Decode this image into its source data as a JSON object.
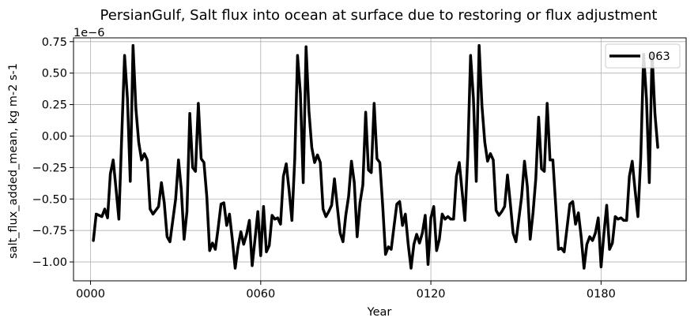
{
  "chart_data": {
    "type": "line",
    "title": "PersianGulf, Salt flux into ocean at surface due to restoring or flux adjustment",
    "xlabel": "Year",
    "ylabel": "salt_flux_added_mean, kg m-2 s-1",
    "y_offset_text": "1e−6",
    "xlim": [
      -6,
      210
    ],
    "ylim": [
      -1.15,
      0.78
    ],
    "x_ticks": [
      0,
      60,
      120,
      180
    ],
    "x_tick_labels": [
      "0000",
      "0060",
      "0120",
      "0180"
    ],
    "y_ticks": [
      -1.0,
      -0.75,
      -0.5,
      -0.25,
      0.0,
      0.25,
      0.5,
      0.75
    ],
    "y_tick_labels": [
      "−1.00",
      "−0.75",
      "−0.50",
      "−0.25",
      "0.00",
      "0.25",
      "0.50",
      "0.75"
    ],
    "grid": true,
    "legend_position": "top-right",
    "series": [
      {
        "name": "063",
        "color": "#000000",
        "x": [
          1,
          2,
          3,
          4,
          5,
          6,
          7,
          8,
          9,
          10,
          11,
          12,
          13,
          14,
          15,
          16,
          17,
          18,
          19,
          20,
          21,
          22,
          23,
          24,
          25,
          26,
          27,
          28,
          29,
          30,
          31,
          32,
          33,
          34,
          35,
          36,
          37,
          38,
          39,
          40,
          41,
          42,
          43,
          44,
          45,
          46,
          47,
          48,
          49,
          50,
          51,
          52,
          53,
          54,
          55,
          56,
          57,
          58,
          59,
          60,
          61,
          62,
          63,
          64,
          65,
          66,
          67,
          68,
          69,
          70,
          71,
          72,
          73,
          74,
          75,
          76,
          77,
          78,
          79,
          80,
          81,
          82,
          83,
          84,
          85,
          86,
          87,
          88,
          89,
          90,
          91,
          92,
          93,
          94,
          95,
          96,
          97,
          98,
          99,
          100,
          101,
          102,
          103,
          104,
          105,
          106,
          107,
          108,
          109,
          110,
          111,
          112,
          113,
          114,
          115,
          116,
          117,
          118,
          119,
          120,
          121,
          122,
          123,
          124,
          125,
          126,
          127,
          128,
          129,
          130,
          131,
          132,
          133,
          134,
          135,
          136,
          137,
          138,
          139,
          140,
          141,
          142,
          143,
          144,
          145,
          146,
          147,
          148,
          149,
          150,
          151,
          152,
          153,
          154,
          155,
          156,
          157,
          158,
          159,
          160,
          161,
          162,
          163,
          164,
          165,
          166,
          167,
          168,
          169,
          170,
          171,
          172,
          173,
          174,
          175,
          176,
          177,
          178,
          179,
          180,
          181,
          182,
          183,
          184,
          185,
          186,
          187,
          188,
          189,
          190,
          191,
          192,
          193,
          194,
          195,
          196,
          197,
          198,
          199,
          200
        ],
        "y": [
          -0.83,
          -0.62,
          -0.63,
          -0.64,
          -0.58,
          -0.65,
          -0.3,
          -0.19,
          -0.42,
          -0.66,
          0.0,
          0.64,
          0.3,
          -0.36,
          0.72,
          0.22,
          -0.05,
          -0.19,
          -0.14,
          -0.19,
          -0.58,
          -0.62,
          -0.59,
          -0.56,
          -0.37,
          -0.53,
          -0.8,
          -0.84,
          -0.67,
          -0.5,
          -0.19,
          -0.42,
          -0.82,
          -0.6,
          0.18,
          -0.25,
          -0.28,
          0.26,
          -0.18,
          -0.21,
          -0.48,
          -0.91,
          -0.85,
          -0.9,
          -0.73,
          -0.54,
          -0.53,
          -0.71,
          -0.62,
          -0.82,
          -1.05,
          -0.88,
          -0.76,
          -0.86,
          -0.78,
          -0.67,
          -1.03,
          -0.82,
          -0.6,
          -0.95,
          -0.56,
          -0.92,
          -0.87,
          -0.63,
          -0.66,
          -0.65,
          -0.7,
          -0.32,
          -0.22,
          -0.43,
          -0.67,
          -0.18,
          0.64,
          0.34,
          -0.37,
          0.71,
          0.2,
          -0.09,
          -0.21,
          -0.15,
          -0.21,
          -0.58,
          -0.64,
          -0.6,
          -0.55,
          -0.34,
          -0.56,
          -0.77,
          -0.84,
          -0.63,
          -0.48,
          -0.2,
          -0.37,
          -0.8,
          -0.53,
          -0.39,
          0.19,
          -0.27,
          -0.29,
          0.26,
          -0.18,
          -0.21,
          -0.55,
          -0.94,
          -0.88,
          -0.9,
          -0.72,
          -0.54,
          -0.52,
          -0.71,
          -0.62,
          -0.86,
          -1.05,
          -0.86,
          -0.78,
          -0.85,
          -0.77,
          -0.63,
          -1.02,
          -0.65,
          -0.56,
          -0.91,
          -0.82,
          -0.62,
          -0.66,
          -0.64,
          -0.66,
          -0.66,
          -0.32,
          -0.21,
          -0.44,
          -0.67,
          -0.16,
          0.64,
          0.3,
          -0.36,
          0.72,
          0.24,
          -0.05,
          -0.2,
          -0.14,
          -0.19,
          -0.59,
          -0.63,
          -0.6,
          -0.56,
          -0.31,
          -0.53,
          -0.77,
          -0.84,
          -0.66,
          -0.48,
          -0.2,
          -0.4,
          -0.82,
          -0.61,
          -0.34,
          0.15,
          -0.26,
          -0.28,
          0.26,
          -0.19,
          -0.19,
          -0.55,
          -0.9,
          -0.89,
          -0.92,
          -0.73,
          -0.54,
          -0.52,
          -0.7,
          -0.61,
          -0.8,
          -1.05,
          -0.86,
          -0.8,
          -0.83,
          -0.77,
          -0.65,
          -1.04,
          -0.78,
          -0.55,
          -0.9,
          -0.85,
          -0.64,
          -0.66,
          -0.65,
          -0.67,
          -0.67,
          -0.32,
          -0.2,
          -0.43,
          -0.64,
          -0.17,
          0.65,
          0.3,
          -0.37,
          0.66,
          0.18,
          -0.09
        ]
      }
    ]
  }
}
